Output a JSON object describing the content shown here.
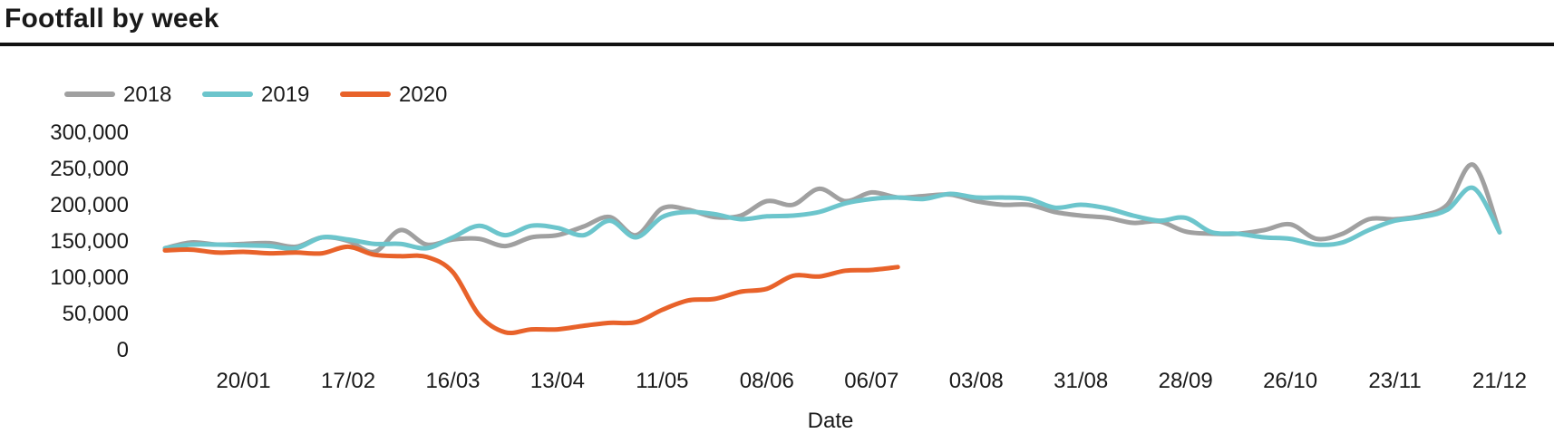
{
  "header": {
    "title": "Footfall by week"
  },
  "chart_data": {
    "type": "line",
    "title": "Footfall by week",
    "xlabel": "Date",
    "ylabel": "",
    "ylim": [
      0,
      300000
    ],
    "yticks": [
      0,
      50000,
      100000,
      150000,
      200000,
      250000,
      300000
    ],
    "ytick_labels": [
      "0",
      "50,000",
      "100,000",
      "150,000",
      "200,000",
      "250,000",
      "300,000"
    ],
    "xtick_labels": [
      "20/01",
      "17/02",
      "16/03",
      "13/04",
      "11/05",
      "08/06",
      "06/07",
      "03/08",
      "31/08",
      "28/09",
      "26/10",
      "23/11",
      "21/12"
    ],
    "legend": {
      "position": "top-left"
    },
    "grid": false,
    "series": [
      {
        "name": "2018",
        "color": "#a0a0a0",
        "values": [
          140000,
          148000,
          145000,
          146000,
          147000,
          142000,
          155000,
          150000,
          135000,
          165000,
          145000,
          152000,
          153000,
          143000,
          155000,
          158000,
          170000,
          183000,
          158000,
          195000,
          193000,
          183000,
          185000,
          205000,
          200000,
          222000,
          205000,
          217000,
          210000,
          212000,
          214000,
          205000,
          200000,
          200000,
          190000,
          185000,
          182000,
          175000,
          177000,
          163000,
          160000,
          160000,
          165000,
          173000,
          153000,
          160000,
          180000,
          180000,
          185000,
          200000,
          255000,
          162000
        ]
      },
      {
        "name": "2019",
        "color": "#6cc5cc",
        "values": [
          140000,
          145000,
          145000,
          144000,
          143000,
          140000,
          155000,
          152000,
          146000,
          146000,
          140000,
          155000,
          171000,
          158000,
          171000,
          168000,
          158000,
          178000,
          155000,
          183000,
          190000,
          187000,
          180000,
          184000,
          185000,
          190000,
          202000,
          208000,
          210000,
          208000,
          215000,
          210000,
          210000,
          208000,
          196000,
          200000,
          195000,
          185000,
          178000,
          182000,
          162000,
          160000,
          155000,
          153000,
          145000,
          148000,
          165000,
          178000,
          183000,
          193000,
          223000,
          162000
        ]
      },
      {
        "name": "2020",
        "color": "#e8622a",
        "values": [
          137000,
          138000,
          134000,
          135000,
          133000,
          134000,
          133000,
          142000,
          131000,
          129000,
          128000,
          107000,
          48000,
          24000,
          28000,
          28000,
          33000,
          37000,
          38000,
          55000,
          68000,
          70000,
          80000,
          84000,
          102000,
          101000,
          109000,
          110000,
          114000
        ]
      }
    ]
  }
}
